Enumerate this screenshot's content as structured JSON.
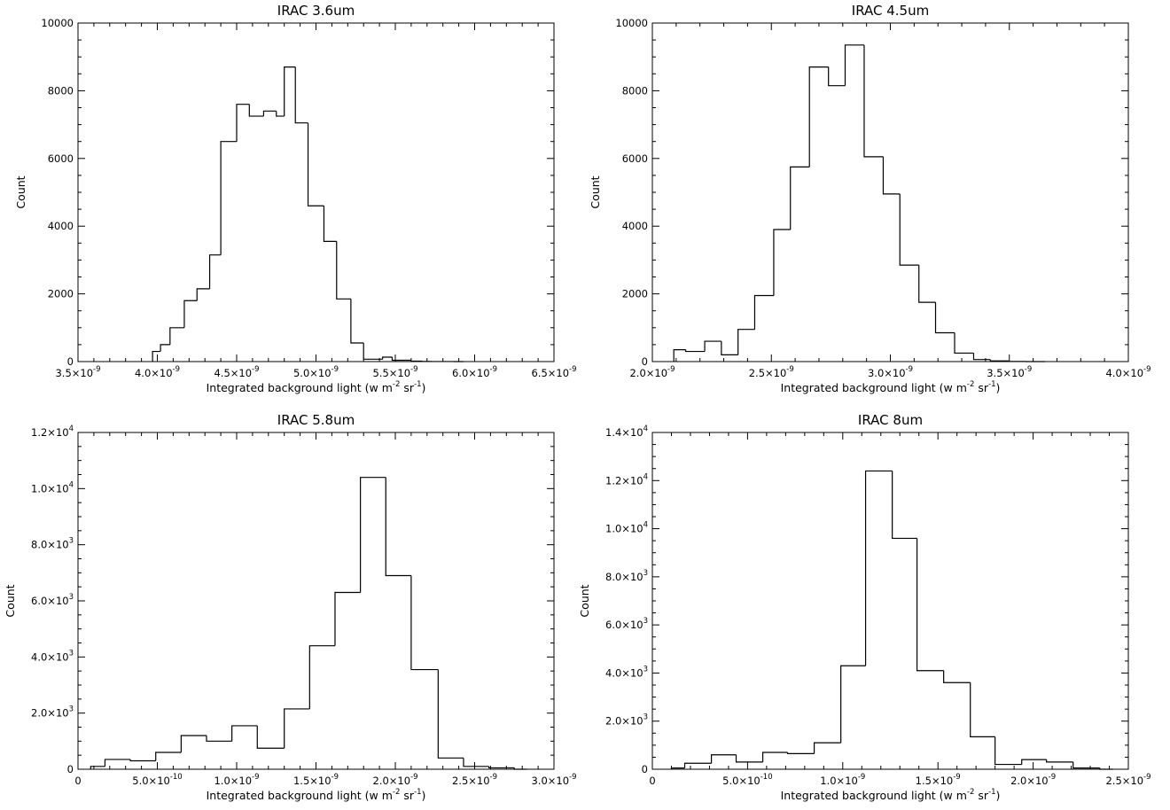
{
  "chart_data": [
    {
      "type": "bar",
      "style": "histogram-step",
      "title": "IRAC 3.6um",
      "xlabel": {
        "base": "Integrated background light (w m",
        "exp1": "-2",
        "mid": " sr",
        "exp2": "-1",
        "end": ")"
      },
      "ylabel": "Count",
      "xlim": [
        3.5e-09,
        6.5e-09
      ],
      "ylim": [
        0,
        10000
      ],
      "xticks": [
        {
          "value": 3.5e-09,
          "mant": "3.5×10",
          "exp": "-9"
        },
        {
          "value": 4e-09,
          "mant": "4.0×10",
          "exp": "-9"
        },
        {
          "value": 4.5e-09,
          "mant": "4.5×10",
          "exp": "-9"
        },
        {
          "value": 5e-09,
          "mant": "5.0×10",
          "exp": "-9"
        },
        {
          "value": 5.5e-09,
          "mant": "5.5×10",
          "exp": "-9"
        },
        {
          "value": 6e-09,
          "mant": "6.0×10",
          "exp": "-9"
        },
        {
          "value": 6.5e-09,
          "mant": "6.5×10",
          "exp": "-9"
        }
      ],
      "yticks": [
        {
          "value": 0,
          "mant": "0",
          "exp": ""
        },
        {
          "value": 2000,
          "mant": "2000",
          "exp": ""
        },
        {
          "value": 4000,
          "mant": "4000",
          "exp": ""
        },
        {
          "value": 6000,
          "mant": "6000",
          "exp": ""
        },
        {
          "value": 8000,
          "mant": "8000",
          "exp": ""
        },
        {
          "value": 10000,
          "mant": "10000",
          "exp": ""
        }
      ],
      "x_minor": 5,
      "y_minor": 4,
      "bin_edges": [
        3.97e-09,
        4.02e-09,
        4.08e-09,
        4.17e-09,
        4.25e-09,
        4.33e-09,
        4.4e-09,
        4.5e-09,
        4.58e-09,
        4.67e-09,
        4.75e-09,
        4.8e-09,
        4.87e-09,
        4.95e-09,
        5.05e-09,
        5.13e-09,
        5.22e-09,
        5.3e-09,
        5.42e-09,
        5.48e-09,
        5.6e-09,
        5.67e-09,
        5.73e-09,
        5.8e-09,
        5.87e-09,
        5.93e-09
      ],
      "counts": [
        300,
        500,
        1000,
        1800,
        2150,
        3150,
        6500,
        7600,
        7250,
        7400,
        7250,
        8700,
        7050,
        4600,
        3550,
        1850,
        550,
        70,
        130,
        40,
        15,
        5,
        2,
        1,
        0
      ]
    },
    {
      "type": "bar",
      "style": "histogram-step",
      "title": "IRAC 4.5um",
      "xlabel": {
        "base": "Integrated background light (w m",
        "exp1": "-2",
        "mid": " sr",
        "exp2": "-1",
        "end": ")"
      },
      "ylabel": "Count",
      "xlim": [
        2e-09,
        4e-09
      ],
      "ylim": [
        0,
        10000
      ],
      "xticks": [
        {
          "value": 2e-09,
          "mant": "2.0×10",
          "exp": "-9"
        },
        {
          "value": 2.5e-09,
          "mant": "2.5×10",
          "exp": "-9"
        },
        {
          "value": 3e-09,
          "mant": "3.0×10",
          "exp": "-9"
        },
        {
          "value": 3.5e-09,
          "mant": "3.5×10",
          "exp": "-9"
        },
        {
          "value": 4e-09,
          "mant": "4.0×10",
          "exp": "-9"
        }
      ],
      "yticks": [
        {
          "value": 0,
          "mant": "0",
          "exp": ""
        },
        {
          "value": 2000,
          "mant": "2000",
          "exp": ""
        },
        {
          "value": 4000,
          "mant": "4000",
          "exp": ""
        },
        {
          "value": 6000,
          "mant": "6000",
          "exp": ""
        },
        {
          "value": 8000,
          "mant": "8000",
          "exp": ""
        },
        {
          "value": 10000,
          "mant": "10000",
          "exp": ""
        }
      ],
      "x_minor": 5,
      "y_minor": 4,
      "bin_edges": [
        2.09e-09,
        2.14e-09,
        2.22e-09,
        2.29e-09,
        2.36e-09,
        2.43e-09,
        2.51e-09,
        2.58e-09,
        2.66e-09,
        2.74e-09,
        2.81e-09,
        2.89e-09,
        2.97e-09,
        3.04e-09,
        3.12e-09,
        3.19e-09,
        3.27e-09,
        3.35e-09,
        3.42e-09,
        3.5e-09,
        3.57e-09,
        3.65e-09
      ],
      "counts": [
        350,
        300,
        600,
        200,
        950,
        1950,
        3900,
        5750,
        8700,
        8150,
        9350,
        6050,
        4950,
        2850,
        1750,
        850,
        250,
        60,
        20,
        5,
        0
      ]
    },
    {
      "type": "bar",
      "style": "histogram-step",
      "title": "IRAC 5.8um",
      "xlabel": {
        "base": "Integrated background light (w m",
        "exp1": "-2",
        "mid": " sr",
        "exp2": "-1",
        "end": ")"
      },
      "ylabel": "Count",
      "xlim": [
        0,
        3e-09
      ],
      "ylim": [
        0,
        12000
      ],
      "xticks": [
        {
          "value": 0,
          "mant": "0",
          "exp": ""
        },
        {
          "value": 5e-10,
          "mant": "5.0×10",
          "exp": "-10"
        },
        {
          "value": 1e-09,
          "mant": "1.0×10",
          "exp": "-9"
        },
        {
          "value": 1.5e-09,
          "mant": "1.5×10",
          "exp": "-9"
        },
        {
          "value": 2e-09,
          "mant": "2.0×10",
          "exp": "-9"
        },
        {
          "value": 2.5e-09,
          "mant": "2.5×10",
          "exp": "-9"
        },
        {
          "value": 3e-09,
          "mant": "3.0×10",
          "exp": "-9"
        }
      ],
      "yticks": [
        {
          "value": 0,
          "mant": "0",
          "exp": ""
        },
        {
          "value": 2000,
          "mant": "2.0×10",
          "exp": "3"
        },
        {
          "value": 4000,
          "mant": "4.0×10",
          "exp": "3"
        },
        {
          "value": 6000,
          "mant": "6.0×10",
          "exp": "3"
        },
        {
          "value": 8000,
          "mant": "8.0×10",
          "exp": "3"
        },
        {
          "value": 10000,
          "mant": "1.0×10",
          "exp": "4"
        },
        {
          "value": 12000,
          "mant": "1.2×10",
          "exp": "4"
        }
      ],
      "x_minor": 5,
      "y_minor": 4,
      "bin_edges": [
        8e-11,
        1.7e-10,
        3.3e-10,
        4.9e-10,
        6.5e-10,
        8.1e-10,
        9.7e-10,
        1.13e-09,
        1.3e-09,
        1.46e-09,
        1.62e-09,
        1.78e-09,
        1.94e-09,
        2.1e-09,
        2.27e-09,
        2.43e-09,
        2.59e-09,
        2.75e-09,
        2.83e-09
      ],
      "counts": [
        100,
        350,
        300,
        600,
        1200,
        1000,
        1550,
        750,
        2150,
        4400,
        6300,
        10400,
        6900,
        3550,
        400,
        100,
        50,
        0
      ]
    },
    {
      "type": "bar",
      "style": "histogram-step",
      "title": "IRAC 8um",
      "xlabel": {
        "base": "Integrated background light (w m",
        "exp1": "-2",
        "mid": " sr",
        "exp2": "-1",
        "end": ")"
      },
      "ylabel": "Count",
      "xlim": [
        0,
        2.5e-09
      ],
      "ylim": [
        0,
        14000
      ],
      "xticks": [
        {
          "value": 0,
          "mant": "0",
          "exp": ""
        },
        {
          "value": 5e-10,
          "mant": "5.0×10",
          "exp": "-10"
        },
        {
          "value": 1e-09,
          "mant": "1.0×10",
          "exp": "-9"
        },
        {
          "value": 1.5e-09,
          "mant": "1.5×10",
          "exp": "-9"
        },
        {
          "value": 2e-09,
          "mant": "2.0×10",
          "exp": "-9"
        },
        {
          "value": 2.5e-09,
          "mant": "2.5×10",
          "exp": "-9"
        }
      ],
      "yticks": [
        {
          "value": 0,
          "mant": "0",
          "exp": ""
        },
        {
          "value": 2000,
          "mant": "2.0×10",
          "exp": "3"
        },
        {
          "value": 4000,
          "mant": "4.0×10",
          "exp": "3"
        },
        {
          "value": 6000,
          "mant": "6.0×10",
          "exp": "3"
        },
        {
          "value": 8000,
          "mant": "8.0×10",
          "exp": "3"
        },
        {
          "value": 10000,
          "mant": "1.0×10",
          "exp": "4"
        },
        {
          "value": 12000,
          "mant": "1.2×10",
          "exp": "4"
        },
        {
          "value": 14000,
          "mant": "1.4×10",
          "exp": "4"
        }
      ],
      "x_minor": 5,
      "y_minor": 4,
      "bin_edges": [
        1e-10,
        1.7e-10,
        3.1e-10,
        4.4e-10,
        5.8e-10,
        7.1e-10,
        8.5e-10,
        9.9e-10,
        1.12e-09,
        1.26e-09,
        1.39e-09,
        1.53e-09,
        1.67e-09,
        1.8e-09,
        1.94e-09,
        2.07e-09,
        2.21e-09,
        2.35e-09,
        2.42e-09
      ],
      "counts": [
        50,
        250,
        600,
        300,
        700,
        650,
        1100,
        4300,
        12400,
        9600,
        4100,
        3600,
        1350,
        200,
        400,
        300,
        50,
        0
      ]
    }
  ]
}
